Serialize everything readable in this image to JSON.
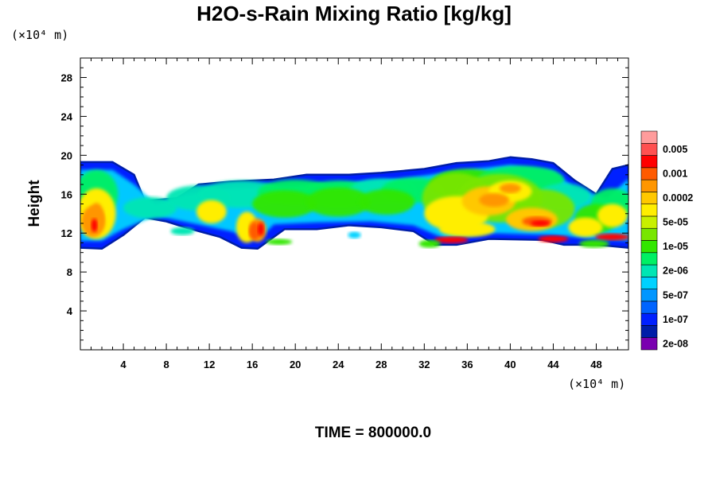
{
  "chart_data": {
    "type": "heatmap",
    "title": "H2O-s-Rain Mixing Ratio [kg/kg]",
    "xlabel": "",
    "ylabel": "Height",
    "x_unit_label": "(×10⁴ m)",
    "y_unit_label": "(×10⁴ m)",
    "xlim": [
      0,
      51
    ],
    "ylim": [
      0,
      30
    ],
    "x_ticks": [
      4,
      8,
      12,
      16,
      20,
      24,
      28,
      32,
      36,
      40,
      44,
      48
    ],
    "y_ticks": [
      4,
      8,
      12,
      16,
      20,
      24,
      28
    ],
    "grid": false,
    "footer": "TIME = 800000.0",
    "colorbar": {
      "placement": "right",
      "colors": [
        "#7a00b0",
        "#001ea8",
        "#0020ff",
        "#0064ff",
        "#0096ff",
        "#00d2ff",
        "#00e6b4",
        "#00f064",
        "#32e600",
        "#78e600",
        "#c8f000",
        "#ffee00",
        "#ffc800",
        "#ff9600",
        "#ff5a00",
        "#ff0000",
        "#ff5050",
        "#ff9c9c"
      ],
      "labels": [
        "2e-08",
        "1e-07",
        "5e-07",
        "2e-06",
        "1e-05",
        "5e-05",
        "0.0002",
        "0.001",
        "0.005"
      ]
    },
    "layer": {
      "bottom_km_x1e4": 10.5,
      "top_km_x1e4": 19.5
    }
  }
}
